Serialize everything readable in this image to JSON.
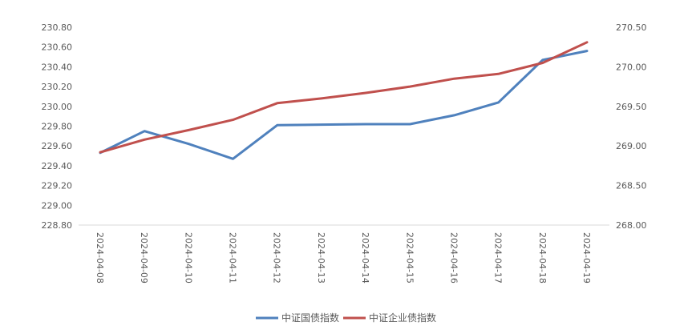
{
  "chart_data": {
    "type": "line",
    "categories": [
      "2024-04-08",
      "2024-04-09",
      "2024-04-10",
      "2024-04-11",
      "2024-04-12",
      "2024-04-13",
      "2024-04-14",
      "2024-04-15",
      "2024-04-16",
      "2024-04-17",
      "2024-04-18",
      "2024-04-19"
    ],
    "series": [
      {
        "name": "中证国债指数",
        "axis": "left",
        "color": "#4f81bd",
        "values": [
          229.53,
          229.75,
          229.62,
          229.47,
          229.81,
          229.815,
          229.82,
          229.82,
          229.91,
          230.04,
          230.47,
          230.56
        ]
      },
      {
        "name": "中证企业债指数",
        "axis": "right",
        "color": "#c0504d",
        "values": [
          268.92,
          269.08,
          269.2,
          269.33,
          269.54,
          269.6,
          269.67,
          269.75,
          269.85,
          269.91,
          270.05,
          270.31
        ]
      }
    ],
    "y_left": {
      "min": 228.8,
      "max": 230.8,
      "step": 0.2,
      "tick_labels": [
        "228.80",
        "229.00",
        "229.20",
        "229.40",
        "229.60",
        "229.80",
        "230.00",
        "230.20",
        "230.40",
        "230.60",
        "230.80"
      ]
    },
    "y_right": {
      "min": 268.0,
      "max": 270.5,
      "step": 0.5,
      "tick_labels": [
        "268.00",
        "268.50",
        "269.00",
        "269.50",
        "270.00",
        "270.50"
      ]
    },
    "grid": false,
    "legend_position": "bottom-center"
  }
}
